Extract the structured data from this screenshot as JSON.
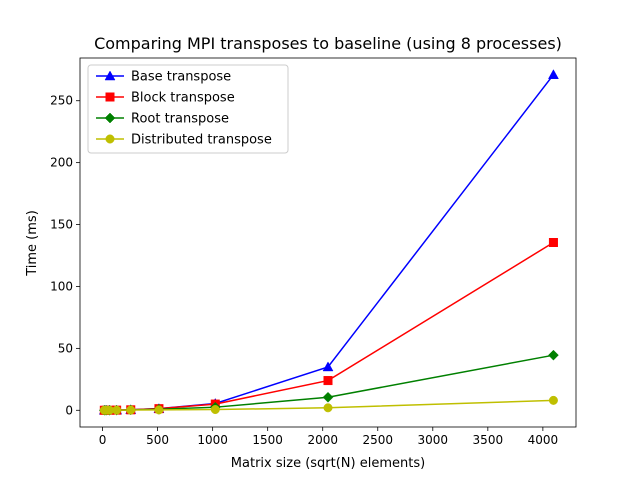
{
  "chart_data": {
    "type": "line",
    "title": "Comparing MPI transposes to baseline (using 8 processes)",
    "xlabel": "Matrix size (sqrt(N) elements)",
    "ylabel": "Time (ms)",
    "xlim": [
      -205,
      4301
    ],
    "ylim": [
      -13.5,
      284.5
    ],
    "xticks": [
      0,
      500,
      1000,
      1500,
      2000,
      2500,
      3000,
      3500,
      4000
    ],
    "yticks": [
      0,
      50,
      100,
      150,
      200,
      250
    ],
    "grid": false,
    "legend_position": "top-left",
    "x": [
      16,
      32,
      64,
      128,
      256,
      512,
      1024,
      2048,
      4096
    ],
    "series": [
      {
        "name": "Base transpose",
        "color": "#0000ff",
        "marker": "triangle",
        "values": [
          0.01,
          0.02,
          0.05,
          0.1,
          0.4,
          1.3,
          5.5,
          35.0,
          271.0
        ]
      },
      {
        "name": "Block transpose",
        "color": "#ff0000",
        "marker": "square",
        "values": [
          0.01,
          0.02,
          0.05,
          0.1,
          0.4,
          1.3,
          5.0,
          24.0,
          135.5
        ]
      },
      {
        "name": "Root transpose",
        "color": "#008000",
        "marker": "diamond",
        "values": [
          0.01,
          0.02,
          0.05,
          0.1,
          0.3,
          0.8,
          2.5,
          10.5,
          44.5
        ]
      },
      {
        "name": "Distributed transpose",
        "color": "#bfbf00",
        "marker": "circle",
        "values": [
          0.01,
          0.02,
          0.04,
          0.08,
          0.2,
          0.3,
          0.6,
          2.0,
          8.0
        ]
      }
    ]
  }
}
